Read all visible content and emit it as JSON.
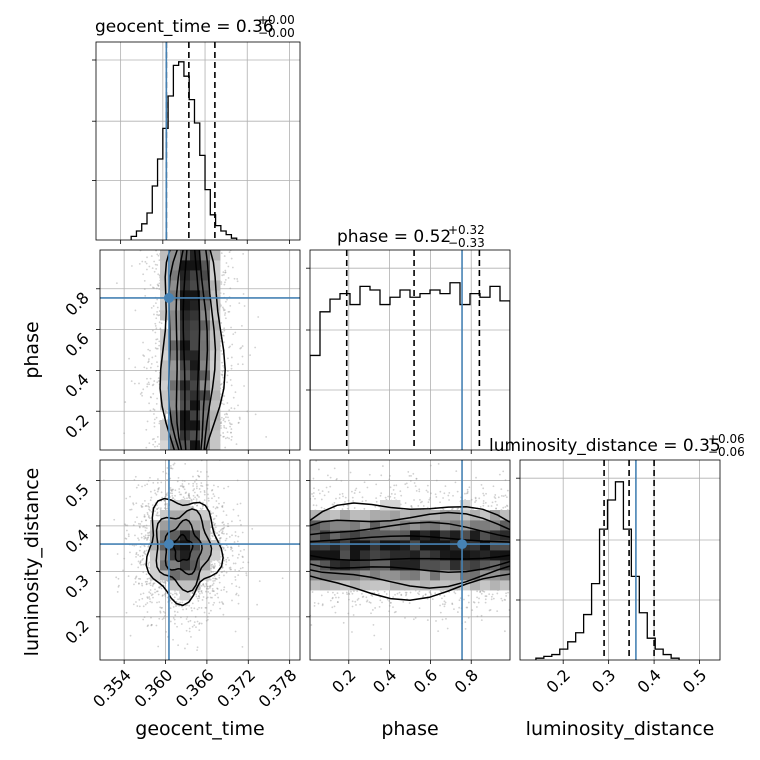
{
  "chart_data": {
    "type": "corner",
    "parameters": [
      "geocent_time",
      "phase",
      "luminosity_distance"
    ],
    "truth": {
      "geocent_time": 0.3605,
      "phase": 0.755,
      "luminosity_distance": 0.36
    },
    "truth_color": "#4682b4",
    "ranges": {
      "geocent_time": [
        0.3505,
        0.3795
      ],
      "phase": [
        0.01,
        0.99
      ],
      "luminosity_distance": [
        0.105,
        0.545
      ]
    },
    "ticks": {
      "geocent_time": [
        "0.354",
        "0.360",
        "0.366",
        "0.372",
        "0.378"
      ],
      "phase": [
        "0.2",
        "0.4",
        "0.6",
        "0.8"
      ],
      "luminosity_distance": [
        "0.2",
        "0.3",
        "0.4",
        "0.5"
      ],
      "luminosity_distance_rows": [
        "0.2",
        "0.3",
        "0.4",
        "0.5"
      ]
    },
    "titles": {
      "geocent_time": {
        "main": "geocent_time = 0.36",
        "plus": "+0.00",
        "minus": "−0.00"
      },
      "phase": {
        "main": "phase = 0.52",
        "plus": "+0.32",
        "minus": "−0.33"
      },
      "luminosity_distance": {
        "main": "luminosity_distance = 0.35",
        "plus": "+0.06",
        "minus": "−0.06"
      }
    },
    "quantiles": {
      "geocent_time": [
        0.3605,
        0.3637,
        0.3674
      ],
      "phase": [
        0.19,
        0.52,
        0.84
      ],
      "luminosity_distance": [
        0.29,
        0.345,
        0.4
      ]
    },
    "histograms": {
      "geocent_time": {
        "edges_start": 0.3555,
        "bin_width": 0.00075,
        "counts": [
          0.02,
          0.05,
          0.09,
          0.15,
          0.3,
          0.45,
          0.62,
          0.8,
          0.97,
          0.99,
          0.91,
          0.78,
          0.65,
          0.47,
          0.28,
          0.14,
          0.08,
          0.05,
          0.03,
          0.01
        ]
      },
      "phase": {
        "edges_start": 0.01,
        "bin_width": 0.049,
        "counts": [
          0.52,
          0.76,
          0.83,
          0.86,
          0.8,
          0.9,
          0.88,
          0.8,
          0.84,
          0.88,
          0.84,
          0.86,
          0.88,
          0.86,
          0.92,
          0.8,
          0.86,
          0.84,
          0.9,
          0.82
        ]
      },
      "luminosity_distance": {
        "edges_start": 0.14,
        "bin_width": 0.0175,
        "counts": [
          0.01,
          0.02,
          0.03,
          0.06,
          0.1,
          0.15,
          0.25,
          0.42,
          0.72,
          0.88,
          0.98,
          0.72,
          0.46,
          0.26,
          0.12,
          0.06,
          0.03,
          0.01
        ]
      }
    },
    "hist_max": 1.0,
    "hist_ticks": [
      0,
      0.33,
      0.66,
      1.0
    ],
    "density_2d": {
      "phase_vs_geocent_time": {
        "center": [
          0.3637,
          0.52
        ],
        "spread": [
          0.0022,
          0.9
        ]
      },
      "luminosity_distance_vs_geocent_time": {
        "center": [
          0.3625,
          0.35
        ],
        "spread": [
          0.0026,
          0.055
        ]
      },
      "luminosity_distance_vs_phase": {
        "center": [
          0.5,
          0.35
        ],
        "spread": [
          0.9,
          0.05
        ]
      }
    },
    "xlabels": [
      "geocent_time",
      "phase",
      "luminosity_distance"
    ],
    "ylabels": [
      "phase",
      "luminosity_distance"
    ]
  }
}
